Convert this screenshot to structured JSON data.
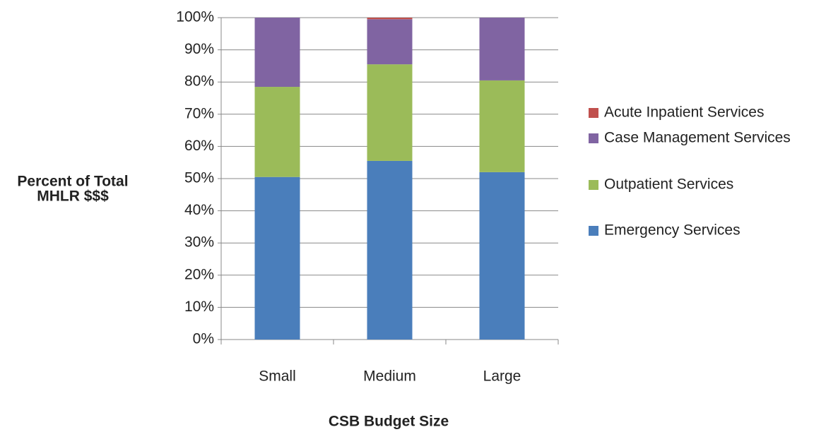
{
  "chart_data": {
    "type": "stacked_bar",
    "x_label": "CSB Budget Size",
    "y_label": [
      "Percent of Total",
      "MHLR $$$"
    ],
    "categories": [
      "Small",
      "Medium",
      "Large"
    ],
    "series": [
      {
        "name": "Emergency Services",
        "color": "#4a7ebb",
        "values": [
          50.5,
          55.5,
          52
        ]
      },
      {
        "name": "Outpatient Services",
        "color": "#9bbb59",
        "values": [
          28,
          30,
          28.5
        ]
      },
      {
        "name": "Case Management Services",
        "color": "#8064a2",
        "values": [
          21.5,
          14,
          19.5
        ]
      },
      {
        "name": "Acute Inpatient Services",
        "color": "#c0504d",
        "values": [
          0,
          0.5,
          0
        ]
      }
    ],
    "ylim": [
      0,
      100
    ],
    "yticks": [
      {
        "value": 0,
        "label": "0%"
      },
      {
        "value": 10,
        "label": "10%"
      },
      {
        "value": 20,
        "label": "20%"
      },
      {
        "value": 30,
        "label": "30%"
      },
      {
        "value": 40,
        "label": "40%"
      },
      {
        "value": 50,
        "label": "50%"
      },
      {
        "value": 60,
        "label": "60%"
      },
      {
        "value": 70,
        "label": "70%"
      },
      {
        "value": 80,
        "label": "80%"
      },
      {
        "value": 90,
        "label": "90%"
      },
      {
        "value": 100,
        "label": "100%"
      }
    ],
    "grid": true,
    "legend": "right"
  }
}
